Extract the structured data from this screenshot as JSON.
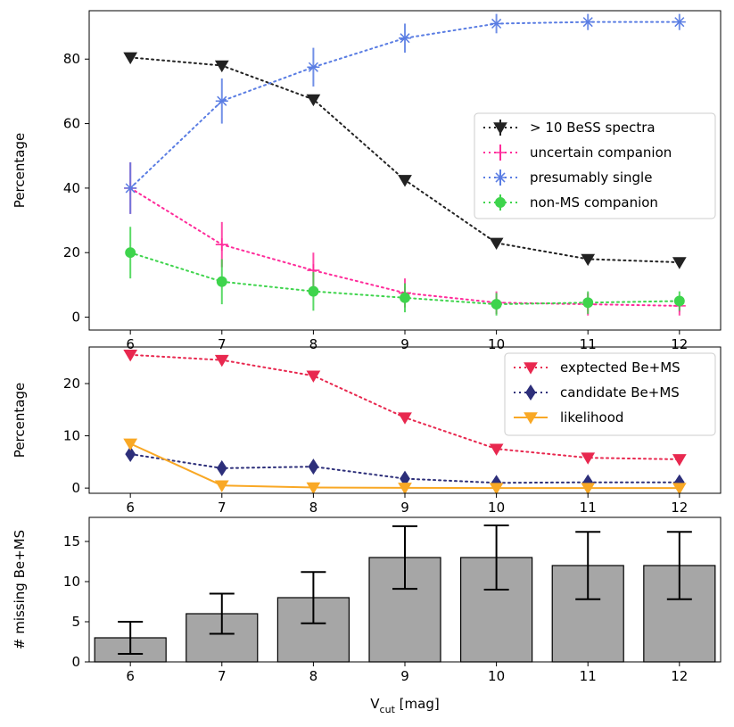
{
  "chart_data": [
    {
      "type": "line",
      "panel": "top",
      "title": "",
      "xlabel": "",
      "ylabel": "Percentage",
      "x": [
        6,
        7,
        8,
        9,
        10,
        11,
        12
      ],
      "xlim": [
        5.55,
        12.45
      ],
      "ylim": [
        -4,
        95
      ],
      "xticks": [
        "6",
        "7",
        "8",
        "9",
        "10",
        "11",
        "12"
      ],
      "yticks": [
        0,
        20,
        40,
        60,
        80
      ],
      "legend_position": "center-right",
      "series": [
        {
          "name": "> 10 BeSS spectra",
          "color": "#222222",
          "marker": "triangle-down",
          "values": [
            80.5,
            78,
            67.5,
            42.5,
            23,
            18,
            17
          ],
          "errors": [
            0,
            0,
            0,
            0,
            0,
            0,
            0
          ]
        },
        {
          "name": "uncertain companion",
          "color": "#ff2b9a",
          "marker": "plus",
          "values": [
            40,
            22.5,
            14.5,
            7.5,
            4.5,
            4,
            3.5
          ],
          "errors": [
            8,
            7,
            5.5,
            4.5,
            3.5,
            3.5,
            3
          ]
        },
        {
          "name": "presumably single",
          "color": "#5a7de3",
          "marker": "star",
          "values": [
            40,
            67,
            77.5,
            86.5,
            91,
            91.5,
            91.5
          ],
          "errors": [
            8,
            7,
            6,
            4.5,
            3,
            2.5,
            2.5
          ]
        },
        {
          "name": "non-MS companion",
          "color": "#3ed44c",
          "marker": "circle",
          "values": [
            20,
            11,
            8,
            6,
            4,
            4.5,
            5
          ],
          "errors": [
            8,
            7,
            6,
            4.5,
            3.5,
            3.5,
            3
          ]
        }
      ]
    },
    {
      "type": "line",
      "panel": "middle",
      "title": "",
      "xlabel": "",
      "ylabel": "Percentage",
      "x": [
        6,
        7,
        8,
        9,
        10,
        11,
        12
      ],
      "xlim": [
        5.55,
        12.45
      ],
      "ylim": [
        -1,
        27
      ],
      "xticks": [
        "6",
        "7",
        "8",
        "9",
        "10",
        "11",
        "12"
      ],
      "yticks": [
        0,
        10,
        20
      ],
      "legend_position": "top-right",
      "series": [
        {
          "name": "exptected Be+MS",
          "color": "#e8284f",
          "marker": "triangle-down",
          "linestyle": "dotted",
          "values": [
            25.5,
            24.5,
            21.5,
            13.5,
            7.5,
            5.8,
            5.5
          ]
        },
        {
          "name": "candidate Be+MS",
          "color": "#2d2f7a",
          "marker": "diamond",
          "linestyle": "dotted",
          "values": [
            6.5,
            3.8,
            4.1,
            1.8,
            1,
            1.1,
            1.1
          ]
        },
        {
          "name": "likelihood",
          "color": "#f9a825",
          "marker": "triangle-down",
          "linestyle": "solid",
          "values": [
            8.5,
            0.5,
            0.1,
            0.05,
            0,
            0,
            0
          ]
        }
      ]
    },
    {
      "type": "bar",
      "panel": "bottom",
      "title": "",
      "xlabel": "V",
      "xlabel_sub": "cut",
      "xlabel_rest": " [mag]",
      "ylabel": "# missing Be+MS",
      "categories": [
        "6",
        "7",
        "8",
        "9",
        "10",
        "11",
        "12"
      ],
      "x": [
        6,
        7,
        8,
        9,
        10,
        11,
        12
      ],
      "xlim": [
        5.55,
        12.45
      ],
      "ylim": [
        0,
        18
      ],
      "yticks": [
        0,
        5,
        10,
        15
      ],
      "values": [
        3,
        6,
        8,
        13,
        13,
        12,
        12
      ],
      "err_low": [
        2,
        2.5,
        3.2,
        3.9,
        4,
        4.2,
        4.2
      ],
      "err_high": [
        2,
        2.5,
        3.2,
        3.9,
        4,
        4.2,
        4.2
      ],
      "bar_color": "#a6a6a6"
    }
  ]
}
